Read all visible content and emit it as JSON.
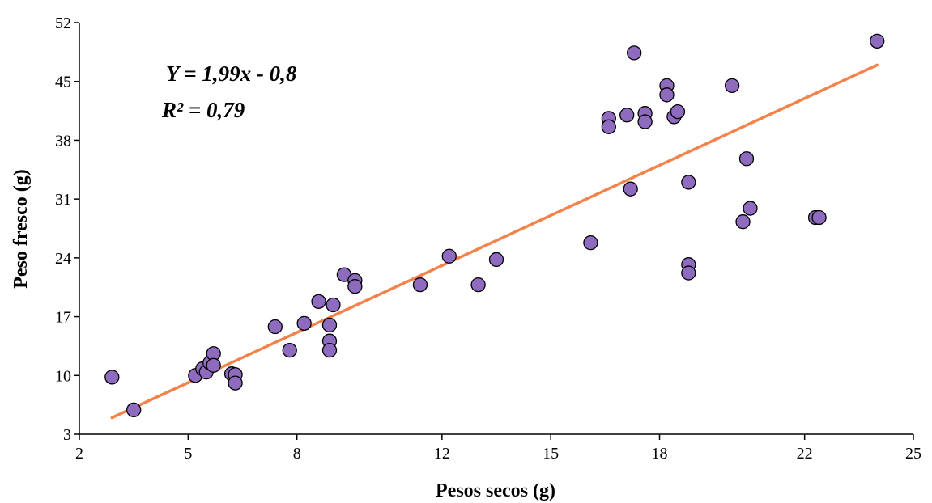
{
  "chart_data": {
    "type": "scatter",
    "xlabel": "Pesos secos (g)",
    "ylabel": "Peso fresco (g)",
    "xlim": [
      2,
      25
    ],
    "ylim": [
      3,
      52
    ],
    "x_ticks": [
      2,
      5,
      8,
      12,
      15,
      18,
      22,
      25
    ],
    "y_ticks": [
      3,
      10,
      17,
      24,
      31,
      38,
      45,
      52
    ],
    "grid": false,
    "colors": {
      "points": "#8e6bbf",
      "point_stroke": "#000000",
      "trendline": "#f4824a"
    },
    "annotations": [
      "Y = 1,99x - 0,8",
      "R² = 0,79"
    ],
    "trendline": {
      "slope": 1.99,
      "intercept": -0.8,
      "x_range": [
        2.9,
        24.0
      ]
    },
    "series": [
      {
        "points": [
          [
            2.9,
            9.8
          ],
          [
            3.5,
            5.9
          ],
          [
            5.2,
            10.0
          ],
          [
            5.4,
            10.8
          ],
          [
            5.5,
            10.4
          ],
          [
            5.6,
            11.5
          ],
          [
            5.7,
            12.6
          ],
          [
            5.7,
            11.2
          ],
          [
            6.2,
            10.2
          ],
          [
            6.3,
            10.1
          ],
          [
            6.3,
            9.1
          ],
          [
            7.4,
            15.8
          ],
          [
            7.8,
            13.0
          ],
          [
            8.2,
            16.2
          ],
          [
            8.6,
            18.8
          ],
          [
            8.9,
            16.0
          ],
          [
            8.9,
            14.1
          ],
          [
            8.9,
            13.0
          ],
          [
            9.0,
            18.4
          ],
          [
            9.3,
            22.0
          ],
          [
            9.6,
            21.3
          ],
          [
            9.6,
            20.6
          ],
          [
            11.4,
            20.8
          ],
          [
            12.2,
            24.2
          ],
          [
            13.0,
            20.8
          ],
          [
            13.5,
            23.8
          ],
          [
            16.1,
            25.8
          ],
          [
            16.6,
            40.6
          ],
          [
            16.6,
            39.6
          ],
          [
            17.1,
            41.0
          ],
          [
            17.2,
            32.2
          ],
          [
            17.3,
            48.4
          ],
          [
            17.6,
            41.2
          ],
          [
            17.6,
            40.2
          ],
          [
            18.2,
            44.5
          ],
          [
            18.2,
            43.4
          ],
          [
            18.4,
            40.8
          ],
          [
            18.5,
            41.4
          ],
          [
            18.8,
            33.0
          ],
          [
            18.8,
            23.2
          ],
          [
            18.8,
            22.2
          ],
          [
            20.0,
            44.5
          ],
          [
            20.3,
            28.3
          ],
          [
            20.4,
            35.8
          ],
          [
            20.5,
            29.9
          ],
          [
            22.3,
            28.8
          ],
          [
            22.4,
            28.8
          ],
          [
            24.0,
            49.8
          ]
        ]
      }
    ]
  }
}
